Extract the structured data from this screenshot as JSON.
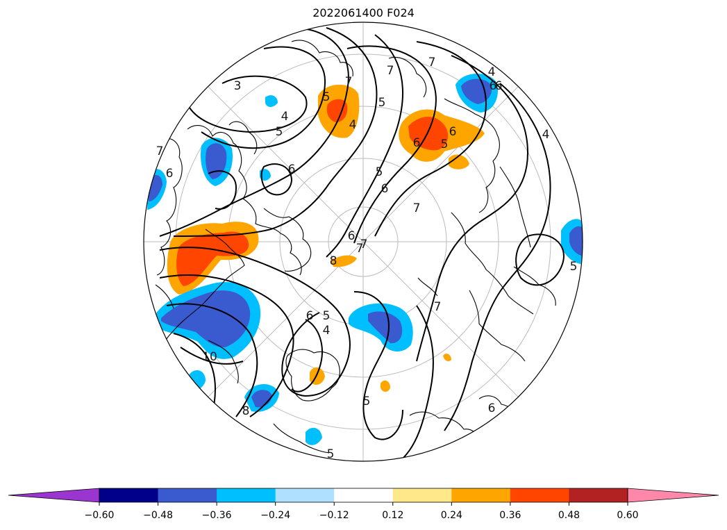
{
  "title": "2022061400 F024",
  "contour_labels": [
    "3",
    "4",
    "4",
    "5",
    "5",
    "5",
    "5",
    "6",
    "6",
    "6",
    "6",
    "6",
    "6",
    "7",
    "7",
    "7",
    "7",
    "7",
    "8",
    "8",
    "6",
    "5",
    "4",
    "10",
    "5",
    "5",
    "4",
    "6",
    "7",
    "6",
    "4",
    "5",
    "5",
    "6",
    "7",
    "7"
  ],
  "colorbar": {
    "ticks": [
      "−0.60",
      "−0.48",
      "−0.36",
      "−0.24",
      "−0.12",
      "0.12",
      "0.24",
      "0.36",
      "0.48",
      "0.60"
    ],
    "colors": [
      "#9a35d0",
      "#00008b",
      "#3a5bd0",
      "#00bfff",
      "#b0e0ff",
      "#ffffff",
      "#ffe88a",
      "#ffa500",
      "#ff4500",
      "#b22222",
      "#ff88aa"
    ]
  },
  "colors": {
    "orange": "#ffa500",
    "red_orange": "#ff4500",
    "light_yellow": "#ffe88a",
    "deep_sky": "#00bfff",
    "royal_blue": "#3a5bd0",
    "grid": "#bbbbbb"
  }
}
